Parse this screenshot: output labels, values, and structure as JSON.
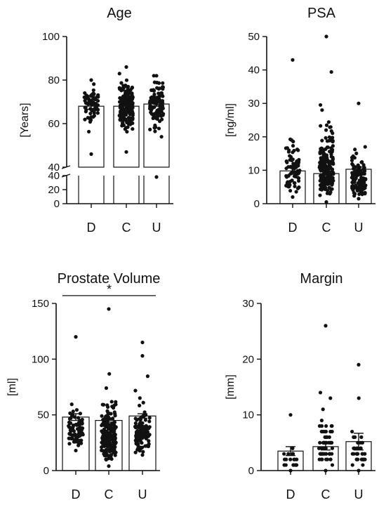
{
  "chart_data": [
    {
      "type": "scatter",
      "subtype": "bar-with-dot-plot",
      "title": "Age",
      "ylabel": "[Years]",
      "ylim": [
        0,
        100
      ],
      "y_axis_break": [
        10,
        40
      ],
      "yticks": [
        0,
        20,
        40,
        60,
        80,
        100
      ],
      "categories": [
        "D",
        "C",
        "U"
      ],
      "bar_means": [
        68,
        68,
        69
      ],
      "error": [
        1.5,
        1,
        1
      ],
      "point_ranges": [
        [
          46,
          80
        ],
        [
          47,
          86
        ],
        [
          38,
          82
        ]
      ],
      "point_counts": [
        70,
        180,
        110
      ],
      "significance": null
    },
    {
      "type": "scatter",
      "subtype": "bar-with-dot-plot",
      "title": "PSA",
      "ylabel": "[ng/ml]",
      "ylim": [
        0,
        50
      ],
      "yticks": [
        0,
        10,
        20,
        30,
        40,
        50
      ],
      "categories": [
        "D",
        "C",
        "U"
      ],
      "bar_means": [
        9.8,
        9,
        10.3
      ],
      "error": [
        1,
        0.6,
        0.7
      ],
      "point_ranges": [
        [
          2,
          43
        ],
        [
          0.5,
          50
        ],
        [
          1.5,
          30
        ]
      ],
      "point_counts": [
        80,
        200,
        120
      ],
      "significance": null
    },
    {
      "type": "scatter",
      "subtype": "bar-with-dot-plot",
      "title": "Prostate Volume",
      "ylabel": "[ml]",
      "ylim": [
        0,
        150
      ],
      "yticks": [
        0,
        50,
        100,
        150
      ],
      "categories": [
        "D",
        "C",
        "U"
      ],
      "bar_means": [
        48,
        45,
        49
      ],
      "error": [
        3,
        1.5,
        2
      ],
      "point_ranges": [
        [
          18,
          120
        ],
        [
          4,
          145
        ],
        [
          14,
          115
        ]
      ],
      "point_counts": [
        85,
        200,
        130
      ],
      "significance": {
        "from": "D",
        "to": "U",
        "label": "*",
        "y": 157
      }
    },
    {
      "type": "scatter",
      "subtype": "bar-with-dot-plot",
      "title": "Margin",
      "ylabel": "[mm]",
      "ylim": [
        0,
        30
      ],
      "yticks": [
        0,
        10,
        20,
        30
      ],
      "categories": [
        "D",
        "C",
        "U"
      ],
      "bar_means": [
        3.5,
        4.3,
        5.2
      ],
      "error": [
        0.8,
        0.6,
        1.5
      ],
      "point_ranges": [
        [
          0,
          10
        ],
        [
          0,
          26
        ],
        [
          0,
          19
        ]
      ],
      "point_counts": [
        22,
        70,
        40
      ],
      "significance": null
    }
  ]
}
